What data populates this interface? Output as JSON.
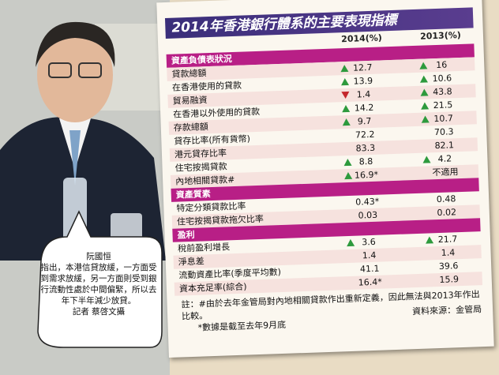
{
  "title": "2014年香港銀行體系的主要表現指標",
  "columns": [
    "2014(%)",
    "2013(%)"
  ],
  "sections": [
    {
      "heading": "資產負債表狀況",
      "rows": [
        {
          "label": "貸款總額",
          "cells": [
            {
              "text": "12.7",
              "trend": "up"
            },
            {
              "text": "16",
              "trend": "up"
            }
          ]
        },
        {
          "label": "在香港使用的貸款",
          "cells": [
            {
              "text": "13.9",
              "trend": "up"
            },
            {
              "text": "10.6",
              "trend": "up"
            }
          ]
        },
        {
          "label": "貿易融資",
          "cells": [
            {
              "text": "1.4",
              "trend": "down"
            },
            {
              "text": "43.8",
              "trend": "up"
            }
          ]
        },
        {
          "label": "在香港以外使用的貸款",
          "cells": [
            {
              "text": "14.2",
              "trend": "up"
            },
            {
              "text": "21.5",
              "trend": "up"
            }
          ]
        },
        {
          "label": "存款總額",
          "cells": [
            {
              "text": "9.7",
              "trend": "up"
            },
            {
              "text": "10.7",
              "trend": "up"
            }
          ]
        },
        {
          "label": "貸存比率(所有貨幣)",
          "cells": [
            {
              "text": "72.2"
            },
            {
              "text": "70.3"
            }
          ]
        },
        {
          "label": "港元貸存比率",
          "cells": [
            {
              "text": "83.3"
            },
            {
              "text": "82.1"
            }
          ]
        },
        {
          "label": "住宅按揭貸款",
          "cells": [
            {
              "text": "8.8",
              "trend": "up"
            },
            {
              "text": "4.2",
              "trend": "up"
            }
          ]
        },
        {
          "label": "內地相關貸款#",
          "cells": [
            {
              "text": "16.9*",
              "trend": "up"
            },
            {
              "text": "不適用"
            }
          ]
        }
      ]
    },
    {
      "heading": "資產質素",
      "rows": [
        {
          "label": "特定分類貸款比率",
          "cells": [
            {
              "text": "0.43*"
            },
            {
              "text": "0.48"
            }
          ]
        },
        {
          "label": "住宅按揭貸款拖欠比率",
          "cells": [
            {
              "text": "0.03"
            },
            {
              "text": "0.02"
            }
          ]
        }
      ]
    },
    {
      "heading": "盈利",
      "rows": [
        {
          "label": "稅前盈利增長",
          "cells": [
            {
              "text": "3.6",
              "trend": "up"
            },
            {
              "text": "21.7",
              "trend": "up"
            }
          ]
        },
        {
          "label": "淨息差",
          "cells": [
            {
              "text": "1.4"
            },
            {
              "text": "1.4"
            }
          ]
        },
        {
          "label": "流動資產比率(季度平均數)",
          "cells": [
            {
              "text": "41.1"
            },
            {
              "text": "39.6"
            }
          ]
        },
        {
          "label": "資本充足率(綜合)",
          "cells": [
            {
              "text": "16.4*"
            },
            {
              "text": "15.9"
            }
          ]
        }
      ]
    }
  ],
  "notes_label": "註：",
  "notes": [
    "#由於去年金管局對內地相關貸款作出重新定義，因此無法與2013年作出比較。",
    "*數據是截至去年9月底"
  ],
  "source": "資料來源：金管局",
  "caption": {
    "name": "阮國恒",
    "text": "指出，本港信貸放緩，一方面受到需求放緩，另一方面則受到銀行流動性處於中間偏緊，所以去年下半年減少放貸。",
    "credit": "記者 蔡啓文攝"
  }
}
